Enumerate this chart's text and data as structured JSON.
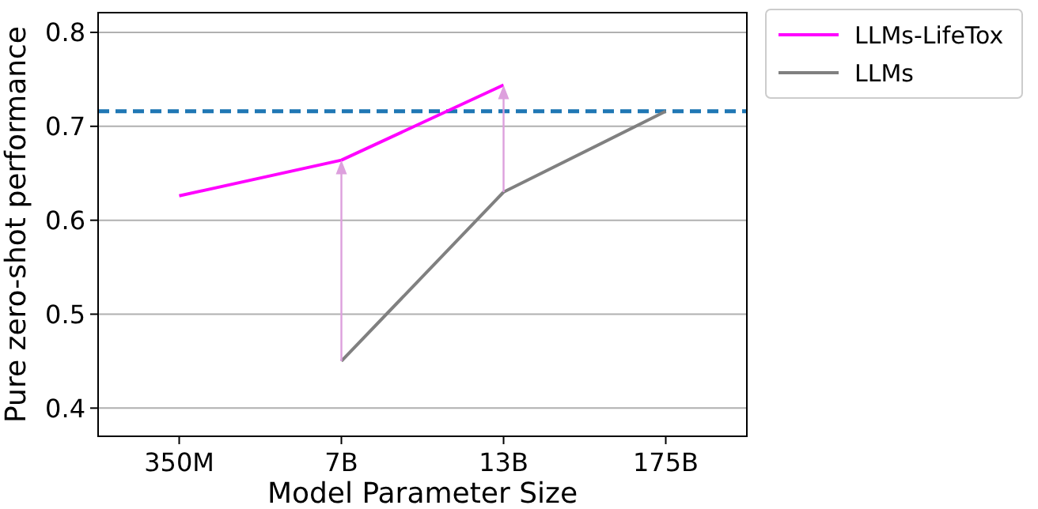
{
  "chart_data": {
    "type": "line",
    "xlabel": "Model Parameter Size",
    "ylabel": "Pure zero-shot performance",
    "categories": [
      "350M",
      "7B",
      "13B",
      "175B"
    ],
    "series": [
      {
        "name": "LLMs-LifeTox",
        "color": "#ff00ff",
        "values": [
          0.626,
          0.664,
          0.744,
          null
        ]
      },
      {
        "name": "LLMs",
        "color": "#808080",
        "values": [
          null,
          0.45,
          0.63,
          0.716
        ]
      }
    ],
    "ref_lines": [
      {
        "axis": "y",
        "value": 0.716,
        "color": "#1f77b4",
        "line_style": "dashed"
      }
    ],
    "ylim": [
      0.37,
      0.821
    ],
    "yticks": [
      0.4,
      0.5,
      0.6,
      0.7,
      0.8
    ],
    "grid": "y",
    "legend": "top right",
    "marker": "none",
    "line_style": "solid"
  }
}
